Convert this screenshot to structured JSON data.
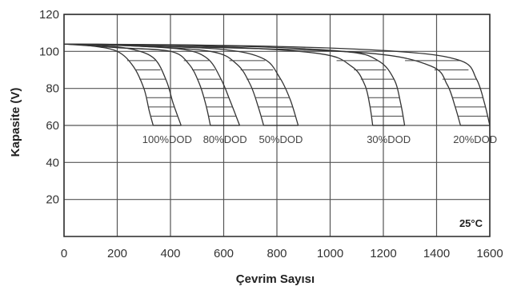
{
  "chart_data": {
    "type": "line",
    "title": "",
    "xlabel": "Çevrim Sayısı",
    "ylabel": "Kapasite (V)",
    "xlim": [
      0,
      1600
    ],
    "ylim": [
      0,
      120
    ],
    "xticks": [
      "0",
      "200",
      "400",
      "600",
      "800",
      "1000",
      "1200",
      "1400",
      "1600"
    ],
    "yticks": [
      "20",
      "40",
      "60",
      "80",
      "100",
      "120"
    ],
    "grid": true,
    "annotation": "25°C",
    "series": [
      {
        "name": "100%DOD",
        "inner": {
          "x": [
            0,
            100,
            200,
            260,
            300,
            320,
            335
          ],
          "y": [
            104,
            103,
            100,
            92,
            80,
            68,
            60
          ]
        },
        "outer": {
          "x": [
            0,
            150,
            260,
            340,
            385,
            410,
            440
          ],
          "y": [
            104,
            103,
            101,
            96,
            84,
            72,
            60
          ]
        },
        "hatch_y": [
          65,
          70,
          75,
          80,
          85,
          90,
          95
        ]
      },
      {
        "name": "80%DOD",
        "inner": {
          "x": [
            0,
            200,
            400,
            470,
            510,
            535,
            550
          ],
          "y": [
            104,
            102,
            100,
            93,
            82,
            70,
            60
          ]
        },
        "outer": {
          "x": [
            0,
            250,
            450,
            540,
            590,
            625,
            660
          ],
          "y": [
            104,
            103,
            101,
            96,
            85,
            73,
            60
          ]
        },
        "hatch_y": [
          65,
          70,
          75,
          80,
          85,
          90,
          95
        ]
      },
      {
        "name": "50%DOD",
        "inner": {
          "x": [
            0,
            250,
            550,
            650,
            700,
            730,
            750
          ],
          "y": [
            104,
            103,
            100,
            93,
            82,
            70,
            60
          ]
        },
        "outer": {
          "x": [
            0,
            300,
            600,
            750,
            810,
            850,
            880
          ],
          "y": [
            104,
            103,
            101,
            96,
            86,
            74,
            60
          ]
        },
        "hatch_y": [
          65,
          70,
          75,
          80,
          85,
          90,
          95
        ]
      },
      {
        "name": "30%DOD",
        "inner": {
          "x": [
            0,
            500,
            950,
            1080,
            1130,
            1150,
            1160
          ],
          "y": [
            104,
            103,
            99,
            92,
            82,
            70,
            60
          ]
        },
        "outer": {
          "x": [
            0,
            600,
            1050,
            1180,
            1240,
            1265,
            1280
          ],
          "y": [
            104,
            103,
            100,
            95,
            85,
            72,
            60
          ]
        },
        "hatch_y": [
          65,
          70,
          75,
          80,
          85,
          90,
          95
        ]
      },
      {
        "name": "20%DOD",
        "inner": {
          "x": [
            0,
            600,
            1150,
            1380,
            1440,
            1470,
            1490
          ],
          "y": [
            104,
            102,
            99,
            92,
            82,
            70,
            60
          ]
        },
        "outer": {
          "x": [
            0,
            700,
            1250,
            1490,
            1550,
            1580,
            1600
          ],
          "y": [
            104,
            103,
            100,
            95,
            85,
            72,
            60
          ]
        },
        "hatch_y": [
          65,
          70,
          75,
          80,
          85,
          90,
          95
        ]
      }
    ]
  }
}
